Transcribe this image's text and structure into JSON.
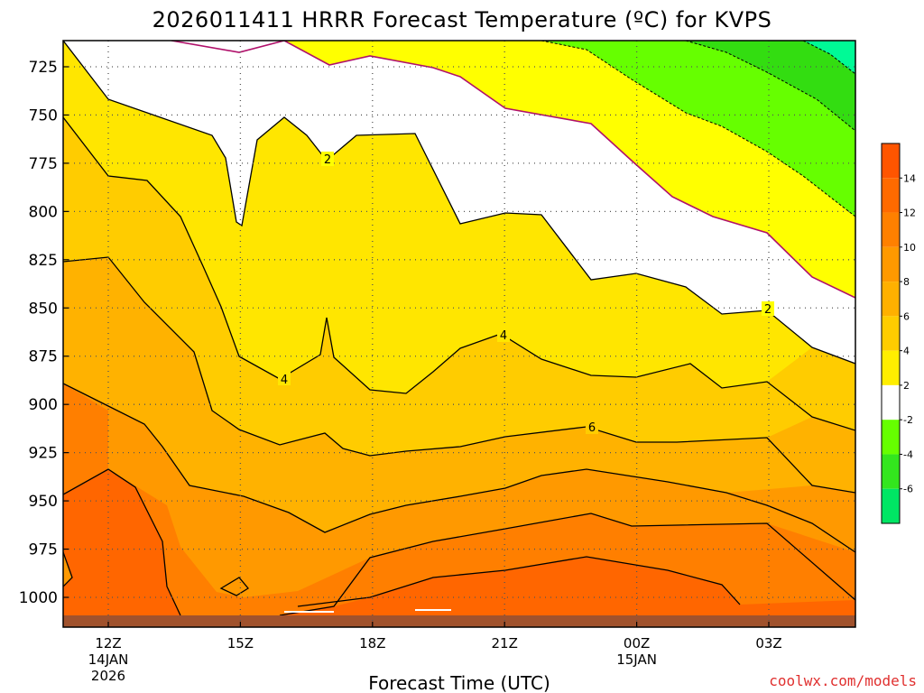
{
  "title": "2026011411 HRRR Forecast Temperature (ºC) for KVPS",
  "credit": "coolwx.com/models",
  "colors": {
    "ground": "#a0522d",
    "frame": "#000000",
    "contour": "#000000",
    "freezing_line": "#b0106a",
    "grid": "#555555",
    "credit": "#e0302f"
  },
  "chart_data": {
    "type": "heatmap",
    "title": "2026011411 HRRR Forecast Temperature (ºC) for KVPS",
    "xlabel": "Forecast Time (UTC)",
    "ylabel": "",
    "x_ticks": [
      {
        "label": "12Z",
        "date": "14JAN",
        "year": "2026"
      },
      {
        "label": "15Z",
        "date": "",
        "year": ""
      },
      {
        "label": "18Z",
        "date": "",
        "year": ""
      },
      {
        "label": "21Z",
        "date": "",
        "year": ""
      },
      {
        "label": "00Z",
        "date": "15JAN",
        "year": ""
      },
      {
        "label": "03Z",
        "date": "",
        "year": ""
      }
    ],
    "y_ticks": [
      725,
      750,
      775,
      800,
      825,
      850,
      875,
      900,
      925,
      950,
      975,
      1000
    ],
    "y_axis": "pressure (hPa), inverted",
    "grid": true,
    "colorbar": {
      "levels": [
        -8,
        -6,
        -4,
        -2,
        2,
        4,
        6,
        8,
        10,
        12,
        14,
        16
      ],
      "labels": [
        "-6",
        "-4",
        "-2",
        "2",
        "4",
        "6",
        "8",
        "10",
        "12",
        "14"
      ],
      "colors": [
        "#00fa96",
        "#00e664",
        "#29e61e",
        "#66ff00",
        "#ffffff",
        "#ffff00",
        "#ffe600",
        "#ffcc00",
        "#ffb200",
        "#ff9900",
        "#ff7f00",
        "#ff6600",
        "#ff4c00"
      ]
    },
    "contour_labels": [
      {
        "text": "2",
        "near": "17Z 770hPa"
      },
      {
        "text": "4",
        "near": "16Z 876hPa"
      },
      {
        "text": "4",
        "near": "21Z 852hPa"
      },
      {
        "text": "6",
        "near": "23Z 902hPa"
      },
      {
        "text": "2",
        "near": "03Z 840hPa"
      }
    ]
  }
}
